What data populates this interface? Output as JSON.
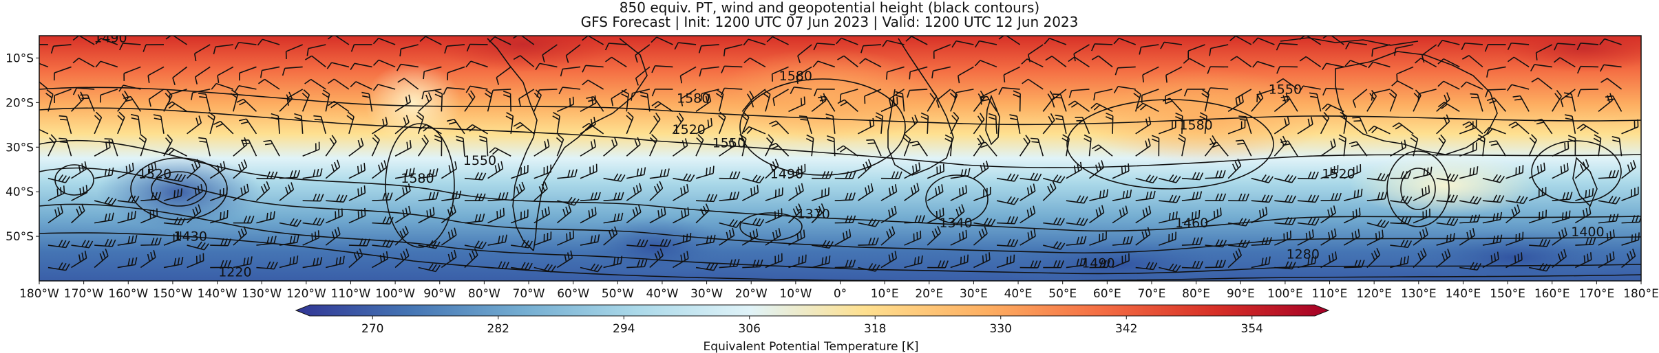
{
  "title": {
    "line1": "850 equiv. PT, wind and geopotential height (black contours)",
    "line2": "GFS Forecast | Init: 1200 UTC 07 Jun 2023 | Valid: 1200 UTC 12 Jun 2023"
  },
  "map": {
    "projection": "PlateCarree",
    "lon_range": [
      -180,
      180
    ],
    "lat_range": [
      -60,
      -5
    ],
    "x_tick_labels": [
      "180°W",
      "170°W",
      "160°W",
      "150°W",
      "140°W",
      "130°W",
      "120°W",
      "110°W",
      "100°W",
      "90°W",
      "80°W",
      "70°W",
      "60°W",
      "50°W",
      "40°W",
      "30°W",
      "20°W",
      "10°W",
      "0°",
      "10°E",
      "20°E",
      "30°E",
      "40°E",
      "50°E",
      "60°E",
      "70°E",
      "80°E",
      "90°E",
      "100°E",
      "110°E",
      "120°E",
      "130°E",
      "140°E",
      "150°E",
      "160°E",
      "170°E",
      "180°E"
    ],
    "y_tick_labels": [
      "10°S",
      "20°S",
      "30°S",
      "40°S",
      "50°S"
    ],
    "y_tick_values": [
      -10,
      -20,
      -30,
      -40,
      -50
    ],
    "contour_labels": [
      {
        "text": "1490",
        "lon": -164,
        "lat": -6.5
      },
      {
        "text": "1520",
        "lon": -154,
        "lat": -37
      },
      {
        "text": "1430",
        "lon": -146,
        "lat": -51
      },
      {
        "text": "1220",
        "lon": -136,
        "lat": -59
      },
      {
        "text": "1580",
        "lon": -95,
        "lat": -38
      },
      {
        "text": "1550",
        "lon": -81,
        "lat": -34
      },
      {
        "text": "1580",
        "lon": -33,
        "lat": -20
      },
      {
        "text": "1520",
        "lon": -34,
        "lat": -27
      },
      {
        "text": "1550",
        "lon": -25,
        "lat": -30
      },
      {
        "text": "1490",
        "lon": -12,
        "lat": -37
      },
      {
        "text": "1370",
        "lon": -6,
        "lat": -46
      },
      {
        "text": "1340",
        "lon": 26,
        "lat": -48
      },
      {
        "text": "1580",
        "lon": -10,
        "lat": -15
      },
      {
        "text": "1550",
        "lon": 100,
        "lat": -18
      },
      {
        "text": "1580",
        "lon": 80,
        "lat": -26
      },
      {
        "text": "1520",
        "lon": 112,
        "lat": -37
      },
      {
        "text": "1460",
        "lon": 79,
        "lat": -48
      },
      {
        "text": "1280",
        "lon": 104,
        "lat": -55
      },
      {
        "text": "1490",
        "lon": 58,
        "lat": -57
      },
      {
        "text": "1400",
        "lon": 168,
        "lat": -50
      }
    ]
  },
  "colorbar": {
    "label": "Equivalent Potential Temperature [K]",
    "min": 264,
    "max": 360,
    "ticks": [
      "270",
      "282",
      "294",
      "306",
      "318",
      "330",
      "342",
      "354"
    ],
    "tick_values": [
      270,
      282,
      294,
      306,
      318,
      330,
      342,
      354
    ],
    "colormap": "RdYlBu_r",
    "colors": [
      "#313695",
      "#4575b4",
      "#74add1",
      "#abd9e9",
      "#e0f3f8",
      "#fee090",
      "#fdae61",
      "#f46d43",
      "#d73027",
      "#a50026"
    ]
  }
}
